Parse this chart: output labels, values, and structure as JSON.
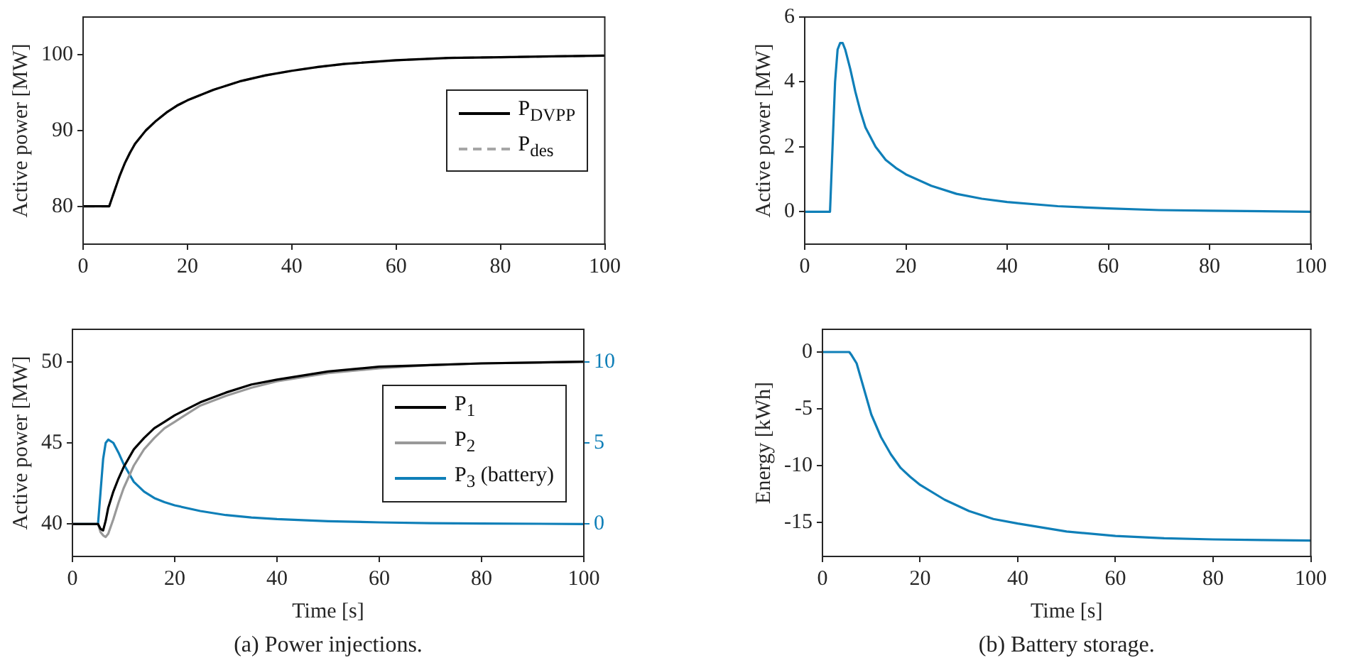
{
  "chart_data": [
    {
      "type": "line",
      "ylabel": "Active power [MW]",
      "xlim": [
        0,
        100
      ],
      "xticks": [
        0,
        20,
        40,
        60,
        80,
        100
      ],
      "ylim": [
        75,
        105
      ],
      "yticks": [
        80,
        90,
        100
      ],
      "grid": false,
      "legend": "right",
      "x": [
        0,
        5,
        6,
        7,
        8,
        9,
        10,
        12,
        14,
        16,
        18,
        20,
        25,
        30,
        35,
        40,
        45,
        50,
        60,
        70,
        80,
        90,
        100
      ],
      "series": [
        {
          "name": "P$_{DVPP}$",
          "color": "#000000",
          "values": [
            80,
            80,
            82,
            84,
            85.7,
            87.1,
            88.3,
            90,
            91.3,
            92.4,
            93.3,
            94,
            95.4,
            96.5,
            97.3,
            97.9,
            98.4,
            98.8,
            99.3,
            99.6,
            99.7,
            99.8,
            99.9
          ]
        },
        {
          "name": "P$_{des}$",
          "color": "#a6a6a6",
          "line_style": "dashed",
          "values": [
            80,
            80,
            82,
            84,
            85.7,
            87.1,
            88.3,
            90,
            91.3,
            92.4,
            93.3,
            94,
            95.4,
            96.5,
            97.3,
            97.9,
            98.4,
            98.8,
            99.3,
            99.6,
            99.7,
            99.8,
            99.9
          ]
        }
      ]
    },
    {
      "type": "line",
      "ylabel": "Active power [MW]",
      "xlim": [
        0,
        100
      ],
      "xticks": [
        0,
        20,
        40,
        60,
        80,
        100
      ],
      "ylim": [
        -1,
        6
      ],
      "yticks": [
        0,
        2,
        4,
        6
      ],
      "grid": false,
      "x": [
        0,
        5,
        5.5,
        6,
        6.5,
        7,
        7.5,
        8,
        9,
        10,
        11,
        12,
        14,
        16,
        18,
        20,
        25,
        30,
        35,
        40,
        50,
        60,
        70,
        80,
        100
      ],
      "series": [
        {
          "color": "#0f7fb8",
          "values": [
            0,
            0,
            2,
            4,
            5,
            5.2,
            5.2,
            5,
            4.4,
            3.7,
            3.1,
            2.6,
            2,
            1.6,
            1.35,
            1.15,
            0.8,
            0.55,
            0.4,
            0.3,
            0.17,
            0.1,
            0.05,
            0.03,
            0
          ]
        }
      ]
    },
    {
      "type": "line",
      "xlabel": "Time [s]",
      "ylabel": "Active power [MW]",
      "xlim": [
        0,
        100
      ],
      "xticks": [
        0,
        20,
        40,
        60,
        80,
        100
      ],
      "ylim": [
        38,
        52
      ],
      "yticks": [
        40,
        45,
        50
      ],
      "y2lim": [
        -2,
        12
      ],
      "y2ticks": [
        0,
        5,
        10
      ],
      "grid": false,
      "legend": "right",
      "annotations": [
        "(a) Power injections."
      ],
      "x": [
        0,
        5,
        5.5,
        6,
        6.5,
        7,
        8,
        9,
        10,
        12,
        14,
        16,
        18,
        20,
        25,
        30,
        35,
        40,
        50,
        60,
        70,
        80,
        100
      ],
      "series": [
        {
          "name": "P$_{1}$",
          "color": "#000000",
          "values": [
            40,
            40,
            39.7,
            39.6,
            40.2,
            41,
            42,
            42.8,
            43.5,
            44.6,
            45.3,
            45.9,
            46.3,
            46.7,
            47.5,
            48.1,
            48.6,
            48.9,
            49.4,
            49.7,
            49.8,
            49.9,
            50
          ]
        },
        {
          "name": "P$_{2}$",
          "color": "#999999",
          "values": [
            40,
            40,
            39.5,
            39.3,
            39.2,
            39.4,
            40.3,
            41.3,
            42.2,
            43.6,
            44.6,
            45.3,
            45.9,
            46.3,
            47.3,
            47.9,
            48.4,
            48.8,
            49.3,
            49.6,
            49.8,
            49.9,
            50
          ]
        },
        {
          "name": "P$_{3}$ (battery)",
          "color": "#0f7fb8",
          "axis": "y2",
          "values": [
            0,
            0,
            2,
            4,
            5,
            5.2,
            5,
            4.4,
            3.7,
            2.6,
            2,
            1.6,
            1.35,
            1.15,
            0.8,
            0.55,
            0.4,
            0.3,
            0.17,
            0.1,
            0.05,
            0.03,
            0
          ]
        }
      ]
    },
    {
      "type": "line",
      "xlabel": "Time [s]",
      "ylabel": "Energy [kWh]",
      "xlim": [
        0,
        100
      ],
      "xticks": [
        0,
        20,
        40,
        60,
        80,
        100
      ],
      "ylim": [
        -18,
        2
      ],
      "yticks": [
        -15,
        -10,
        -5,
        0
      ],
      "grid": false,
      "annotations": [
        "(b) Battery storage."
      ],
      "x": [
        0,
        5,
        5.5,
        6,
        7,
        8,
        9,
        10,
        12,
        14,
        16,
        18,
        20,
        25,
        30,
        35,
        40,
        50,
        60,
        70,
        80,
        90,
        100
      ],
      "series": [
        {
          "color": "#0f7fb8",
          "values": [
            0,
            0,
            0,
            -0.3,
            -1,
            -2.5,
            -4,
            -5.5,
            -7.5,
            -9,
            -10.2,
            -11,
            -11.7,
            -13,
            -14,
            -14.7,
            -15.1,
            -15.8,
            -16.2,
            -16.4,
            -16.5,
            -16.55,
            -16.6
          ]
        }
      ]
    }
  ]
}
